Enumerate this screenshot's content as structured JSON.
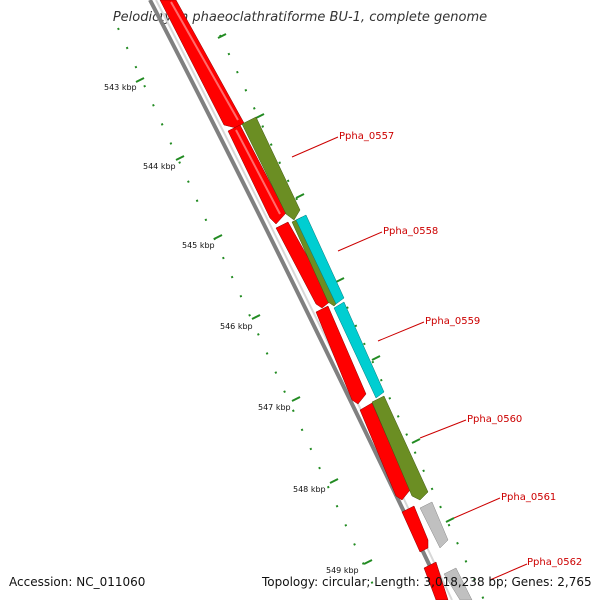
{
  "title": "Pelodictyon phaeoclathratiforme BU-1, complete genome",
  "footer": {
    "accession": "Accession: NC_011060",
    "summary": "Topology: circular; Length: 3,018,238 bp; Genes: 2,765"
  },
  "colors": {
    "forward_strand": "#ff0000",
    "reverse_strand": "#ff0000",
    "olive_feature": "#6b8e23",
    "cyan_feature": "#00ced1",
    "gray_feature": "#c0c0c0",
    "backbone": "#808080",
    "tick": "#228b22",
    "gene_label": "#cc0000"
  },
  "ruler": [
    "543 kbp",
    "544 kbp",
    "545 kbp",
    "546 kbp",
    "547 kbp",
    "548 kbp",
    "549 kbp"
  ],
  "genes": [
    {
      "label": "Ppha_0557"
    },
    {
      "label": "Ppha_0558"
    },
    {
      "label": "Ppha_0559"
    },
    {
      "label": "Ppha_0560"
    },
    {
      "label": "Ppha_0561"
    },
    {
      "label": "Ppha_0562"
    }
  ]
}
